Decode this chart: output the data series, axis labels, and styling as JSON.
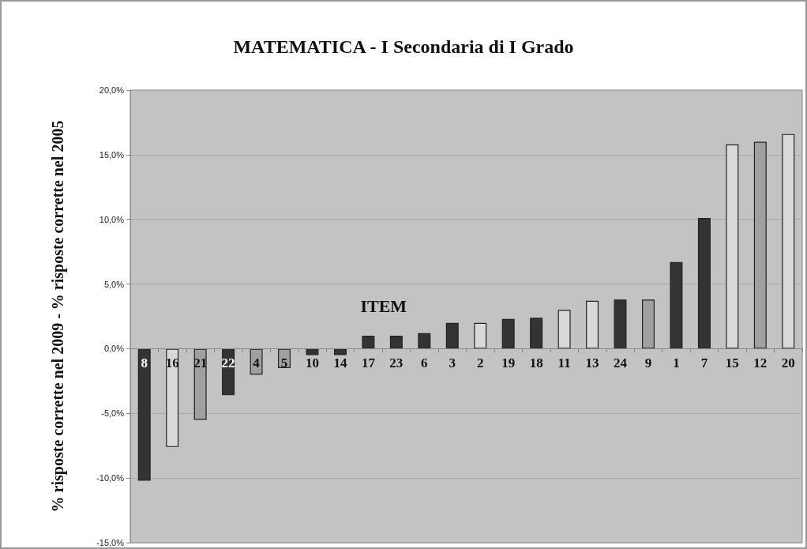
{
  "chart_data": {
    "type": "bar",
    "title": "MATEMATICA - I Secondaria di I Grado",
    "xlabel": "ITEM",
    "ylabel": "% risposte corrette nel 2009 - % risposte corrette nel 2005",
    "categories": [
      "8",
      "16",
      "21",
      "22",
      "4",
      "5",
      "10",
      "14",
      "17",
      "23",
      "6",
      "3",
      "2",
      "19",
      "18",
      "11",
      "13",
      "24",
      "9",
      "1",
      "7",
      "15",
      "12",
      "20"
    ],
    "values": [
      -10.2,
      -7.6,
      -5.5,
      -3.6,
      -2.0,
      -1.5,
      -0.5,
      -0.5,
      1.0,
      1.0,
      1.2,
      2.0,
      2.0,
      2.3,
      2.4,
      3.0,
      3.7,
      3.8,
      3.8,
      6.7,
      10.1,
      15.8,
      16.0,
      16.6
    ],
    "colors": [
      "#333333",
      "#d9d9d9",
      "#a0a0a0",
      "#333333",
      "#a0a0a0",
      "#a0a0a0",
      "#333333",
      "#333333",
      "#333333",
      "#333333",
      "#333333",
      "#333333",
      "#d9d9d9",
      "#333333",
      "#333333",
      "#d9d9d9",
      "#d9d9d9",
      "#333333",
      "#a0a0a0",
      "#333333",
      "#333333",
      "#d9d9d9",
      "#a0a0a0",
      "#d9d9d9"
    ],
    "ylim": [
      -15,
      20
    ],
    "yticks": [
      {
        "value": -15,
        "label": "-15,0%"
      },
      {
        "value": -10,
        "label": "-10,0%"
      },
      {
        "value": -5,
        "label": "-5,0%"
      },
      {
        "value": 0,
        "label": "0,0%"
      },
      {
        "value": 5,
        "label": "5,0%"
      },
      {
        "value": 10,
        "label": "10,0%"
      },
      {
        "value": 15,
        "label": "15,0%"
      },
      {
        "value": 20,
        "label": "20,0%"
      }
    ],
    "grid": "y"
  }
}
